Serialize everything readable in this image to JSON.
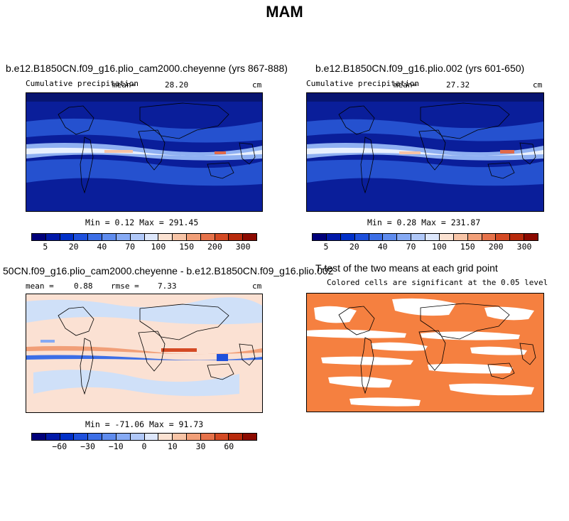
{
  "title": "MAM",
  "panels": {
    "p1": {
      "title": "b.e12.B1850CN.f09_g16.plio_cam2000.cheyenne (yrs 867-888)",
      "variable": "Cumulative precipitation",
      "mean_label": "mean=",
      "mean_value": "28.20",
      "units": "cm",
      "minmax": "Min =   0.12 Max = 291.45"
    },
    "p2": {
      "title": "b.e12.B1850CN.f09_g16.plio.002 (yrs 601-650)",
      "variable": "Cumulative precipitation",
      "mean_label": "mean=",
      "mean_value": "27.32",
      "units": "cm",
      "minmax": "Min =   0.28 Max = 231.87"
    },
    "p3": {
      "title": "50CN.f09_g16.plio_cam2000.cheyenne - b.e12.B1850CN.f09_g16.plio.002",
      "mean_label": "mean =",
      "mean_value": "0.88",
      "rmse_label": "rmse =",
      "rmse_value": "7.33",
      "units": "cm",
      "minmax": "Min = -71.06 Max =  91.73"
    },
    "p4": {
      "title": "T-test of the two means at each grid point",
      "subtitle": "Colored cells are significant at the 0.05 level"
    }
  },
  "colorbars": {
    "precip": {
      "colors": [
        "#00007a",
        "#0019a8",
        "#0030c8",
        "#1e50dc",
        "#3c6ee6",
        "#5f8cee",
        "#86aaf4",
        "#b0c8f8",
        "#dde7fb",
        "#fbe2d2",
        "#f7c4a6",
        "#f19f78",
        "#e6724a",
        "#d44a24",
        "#b82a0c",
        "#8c0a00"
      ],
      "ticks": [
        "5",
        "20",
        "40",
        "70",
        "100",
        "150",
        "200",
        "300"
      ]
    },
    "diff": {
      "colors": [
        "#00007a",
        "#0019a8",
        "#0030c8",
        "#1e50dc",
        "#3c6ee6",
        "#5f8cee",
        "#86aaf4",
        "#b0c8f8",
        "#dde7fb",
        "#fbe2d2",
        "#f7c4a6",
        "#f19f78",
        "#e6724a",
        "#d44a24",
        "#b82a0c",
        "#8c0a00"
      ],
      "ticks": [
        "−60",
        "−30",
        "−10",
        "0",
        "10",
        "30",
        "60"
      ]
    }
  },
  "colors": {
    "ocean_dry": "#0a1e9a",
    "mid_blue": "#2a5ad8",
    "light_blue": "#8fb0f2",
    "itcz": "#e9f0fd",
    "itcz_red": "#e06a4a",
    "diff_bg": "#fbe1d3",
    "diff_blue": "#cfe0f8",
    "ttest_orange": "#f58040"
  }
}
